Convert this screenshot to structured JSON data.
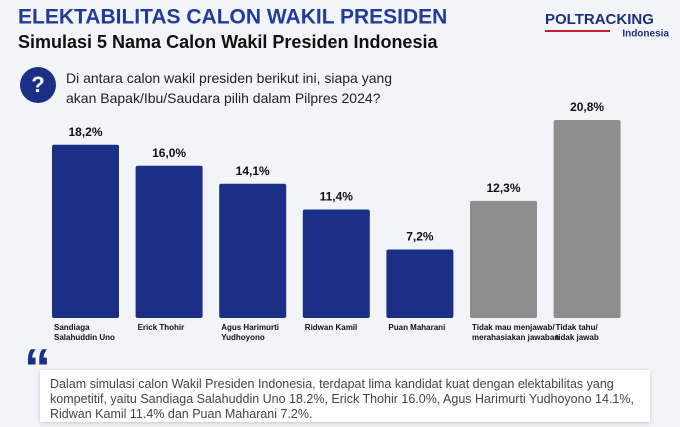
{
  "header": {
    "title": "ELEKTABILITAS CALON WAKIL PRESIDEN",
    "subtitle": "Simulasi 5 Nama Calon Wakil Presiden Indonesia",
    "logo": "POLTRACKING",
    "logo_sub": "Indonesia"
  },
  "question": {
    "icon": "?",
    "text": "Di antara calon wakil presiden berikut ini, siapa yang\nakan Bapak/Ibu/Saudara pilih dalam Pilpres 2024?"
  },
  "chart_data": {
    "type": "bar",
    "categories": [
      "Sandiaga\nSalahuddin Uno",
      "Erick Thohir",
      "Agus Harimurti\nYudhoyono",
      "Ridwan Kamil",
      "Puan Maharani",
      "Tidak mau menjawab/\nmerahasiakan jawaban",
      "Tidak tahu/\ntidak jawab"
    ],
    "values": [
      18.2,
      16.0,
      14.1,
      11.4,
      7.2,
      12.3,
      20.8
    ],
    "value_labels": [
      "18,2%",
      "16,0%",
      "14,1%",
      "11,4%",
      "7,2%",
      "12,3%",
      "20,8%"
    ],
    "colors": [
      "#1c2f86",
      "#1c2f86",
      "#1c2f86",
      "#1c2f86",
      "#1c2f86",
      "#8e8e8e",
      "#8e8e8e"
    ]
  },
  "quote": {
    "mark": "“",
    "text": "Dalam simulasi calon Wakil Presiden Indonesia, terdapat lima kandidat kuat dengan elektabilitas yang kompetitif, yaitu Sandiaga Salahuddin Uno 18.2%, Erick Thohir 16.0%, Agus Harimurti Yudhoyono 14.1%, Ridwan Kamil 11.4% dan Puan Maharani 7.2%."
  }
}
